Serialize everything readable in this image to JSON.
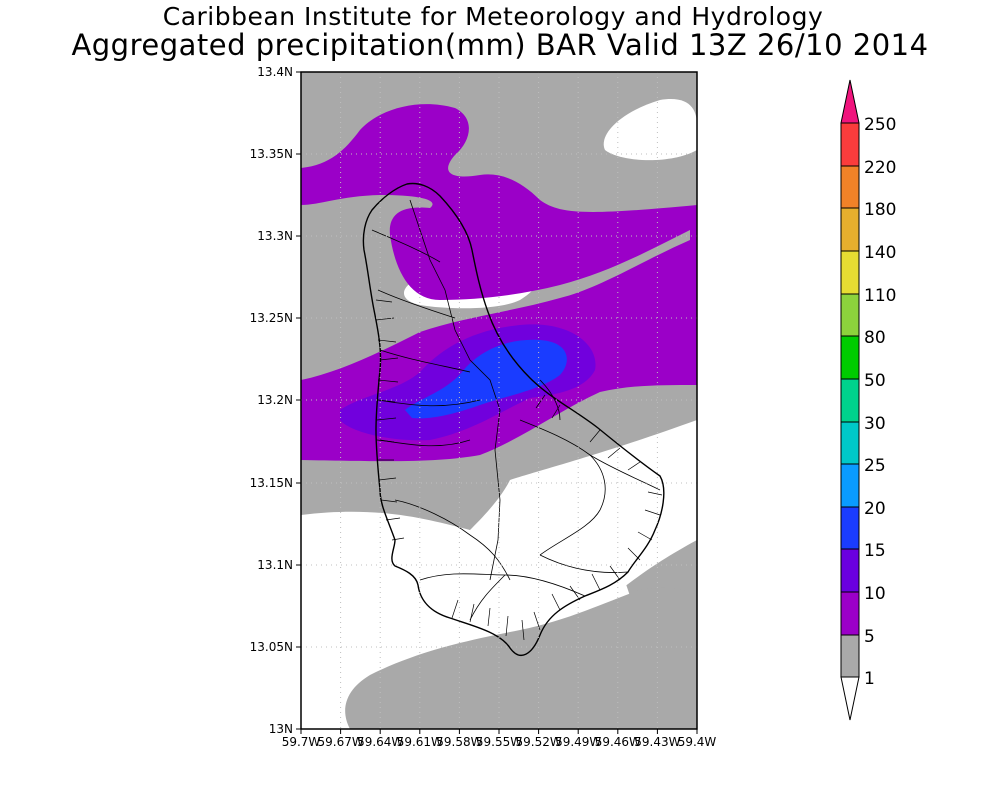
{
  "header": {
    "institute": "Caribbean Institute for Meteorology and Hydrology",
    "product": "Aggregated precipitation(mm) BAR Valid 13Z 26/10 2014"
  },
  "map": {
    "lon_range": [
      -59.7,
      -59.4
    ],
    "lat_range": [
      13.0,
      13.4
    ],
    "lat_ticks": [
      "13.4N",
      "13.35N",
      "13.3N",
      "13.25N",
      "13.2N",
      "13.15N",
      "13.1N",
      "13.05N",
      "13N"
    ],
    "lon_ticks": [
      "59.7W",
      "59.67W",
      "59.64W",
      "59.61W",
      "59.58W",
      "59.55W",
      "59.52W",
      "59.49W",
      "59.46W",
      "59.43W",
      "59.4W"
    ],
    "grid": "dotted"
  },
  "colorbar": {
    "levels": [
      "1",
      "5",
      "10",
      "15",
      "20",
      "25",
      "30",
      "50",
      "80",
      "110",
      "140",
      "180",
      "220",
      "250"
    ],
    "colors": [
      "#ffffff",
      "#a9a9a9",
      "#9b00c8",
      "#6a00e0",
      "#1a3cff",
      "#0a9bff",
      "#00c8c8",
      "#00d28c",
      "#00cc00",
      "#8cd23c",
      "#e6dc32",
      "#e6af2d",
      "#f08228",
      "#fa3c3c",
      "#f0147d"
    ]
  }
}
